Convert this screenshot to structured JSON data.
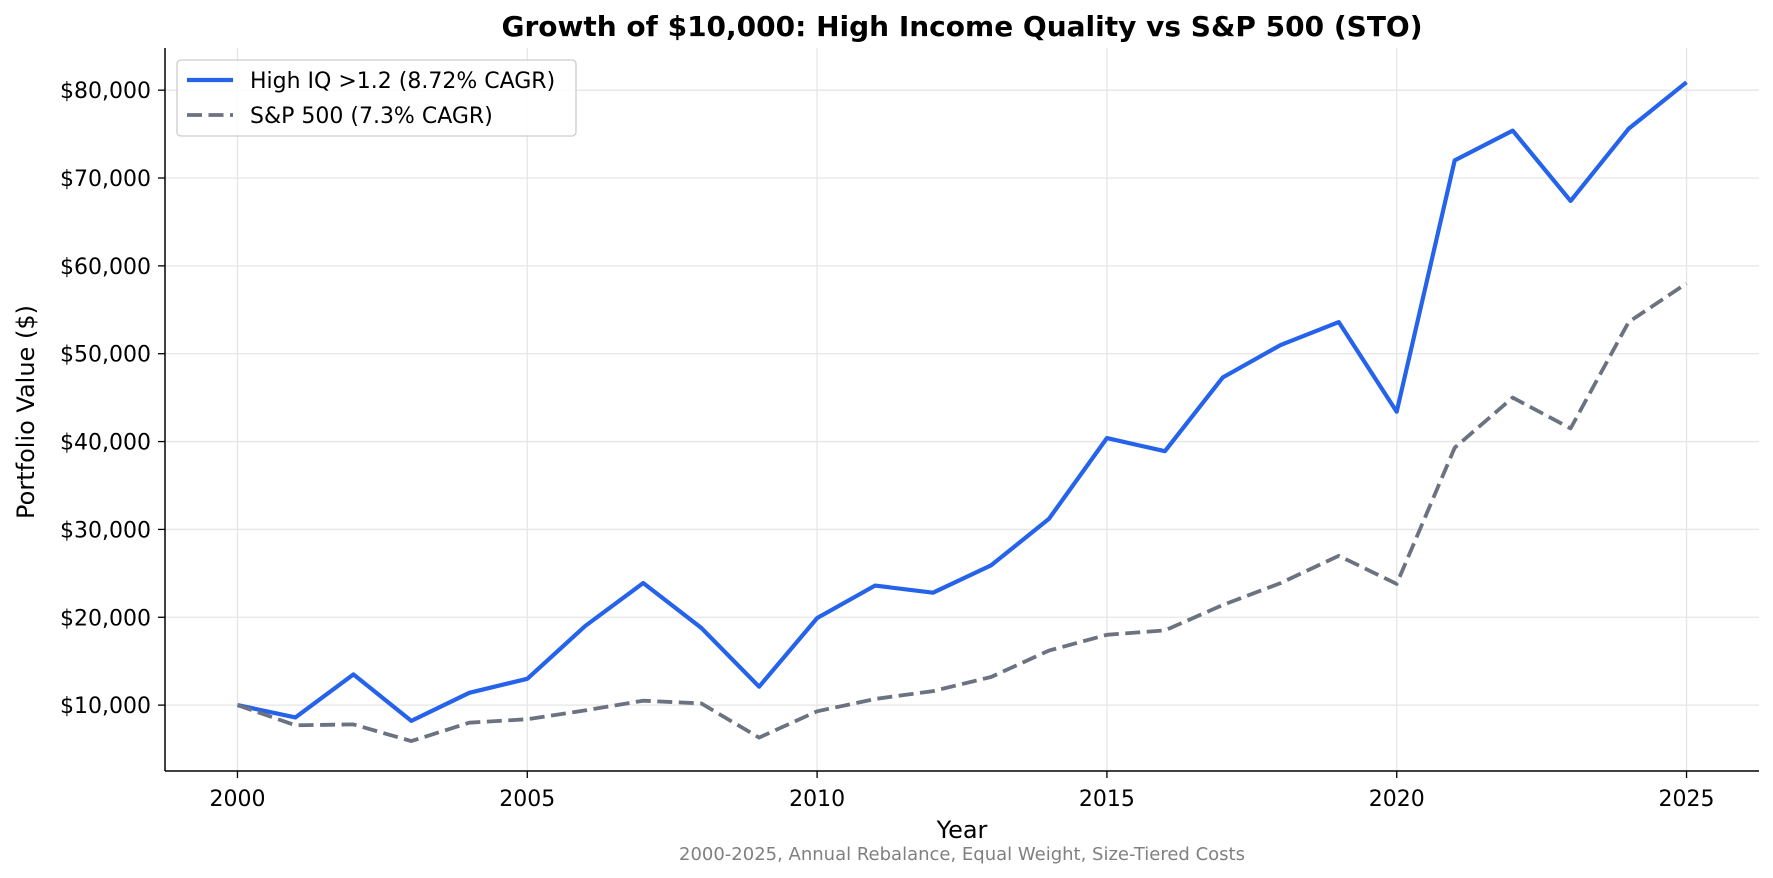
{
  "chart_data": {
    "type": "line",
    "title": "Growth of $10,000: High Income Quality vs S&P 500 (STO)",
    "xlabel": "Year",
    "ylabel": "Portfolio Value ($)",
    "caption": "2000-2025, Annual Rebalance, Equal Weight, Size-Tiered Costs",
    "xlim": [
      1998.75,
      2026.25
    ],
    "ylim": [
      2500,
      84800
    ],
    "grid": true,
    "legend_position": "top-left",
    "x_ticks": [
      2000,
      2005,
      2010,
      2015,
      2020,
      2025
    ],
    "x_tick_labels": [
      "2000",
      "2005",
      "2010",
      "2015",
      "2020",
      "2025"
    ],
    "y_ticks": [
      10000,
      20000,
      30000,
      40000,
      50000,
      60000,
      70000,
      80000
    ],
    "y_tick_labels": [
      "$10,000",
      "$20,000",
      "$30,000",
      "$40,000",
      "$50,000",
      "$60,000",
      "$70,000",
      "$80,000"
    ],
    "x": [
      2000,
      2001,
      2002,
      2003,
      2004,
      2005,
      2006,
      2007,
      2008,
      2009,
      2010,
      2011,
      2012,
      2013,
      2014,
      2015,
      2016,
      2017,
      2018,
      2019,
      2020,
      2021,
      2022,
      2023,
      2024,
      2025
    ],
    "series": [
      {
        "name": "High IQ >1.2 (8.72% CAGR)",
        "color": "#2563eb",
        "style": "solid",
        "values": [
          10000,
          8600,
          13500,
          8200,
          11400,
          13000,
          19000,
          23900,
          18800,
          12100,
          19900,
          23600,
          22800,
          25900,
          31200,
          40400,
          38900,
          47300,
          51000,
          53600,
          43400,
          72000,
          75400,
          67400,
          75600,
          80900
        ]
      },
      {
        "name": "S&P 500 (7.3% CAGR)",
        "color": "#6b7280",
        "style": "dashed",
        "values": [
          10000,
          7700,
          7800,
          5900,
          8000,
          8400,
          9400,
          10500,
          10200,
          6300,
          9300,
          10700,
          11600,
          13200,
          16200,
          18000,
          18500,
          21400,
          23900,
          27000,
          23800,
          39300,
          45000,
          41500,
          53600,
          58000
        ]
      }
    ]
  }
}
